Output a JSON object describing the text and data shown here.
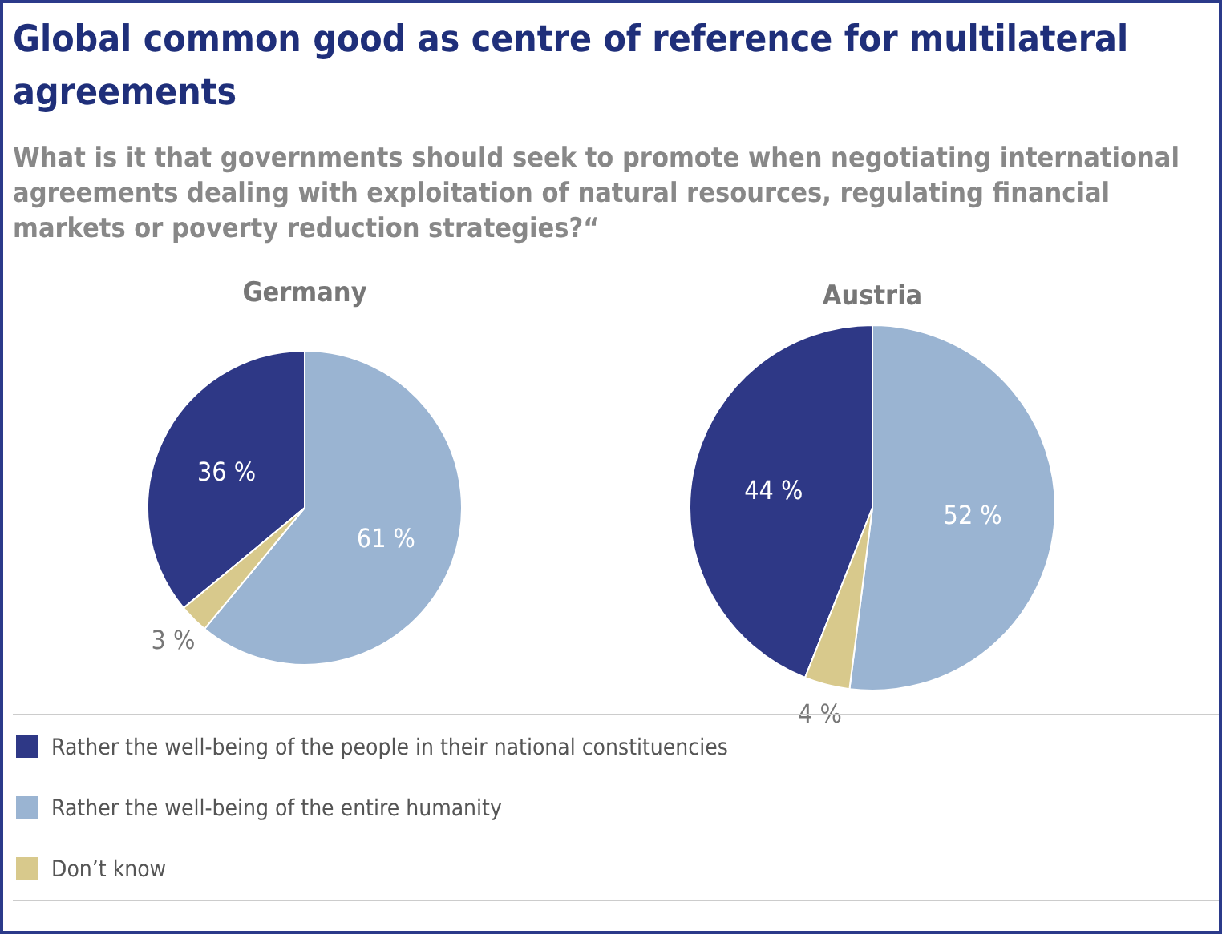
{
  "chart_data": [
    {
      "type": "pie",
      "title": "Global common good as centre of reference for multilateral agreements",
      "subtitle": "What is it that governments should seek to promote when negotiating international agreements dealing with exploitation of natural resources, regulating financial markets or poverty reduction strategies?“",
      "xlabel": "Germany",
      "categories": [
        "Rather the well-being of the people in their national constituencies",
        "Rather the well-being of the entire humanity",
        "Don’t know"
      ],
      "values": [
        36,
        61,
        3
      ],
      "value_labels": [
        "36 %",
        "61 %",
        "3 %"
      ],
      "colors": [
        "#2e3886",
        "#9ab4d2",
        "#d8c98c"
      ],
      "legend": "bottom"
    },
    {
      "type": "pie",
      "xlabel": "Austria",
      "categories": [
        null,
        null,
        null
      ],
      "values": [
        44,
        52,
        4
      ],
      "value_labels": [
        "44 %",
        "52 %",
        "4 %"
      ],
      "colors": [
        "#2e3886",
        "#9ab4d2",
        "#d8c98c"
      ]
    }
  ]
}
